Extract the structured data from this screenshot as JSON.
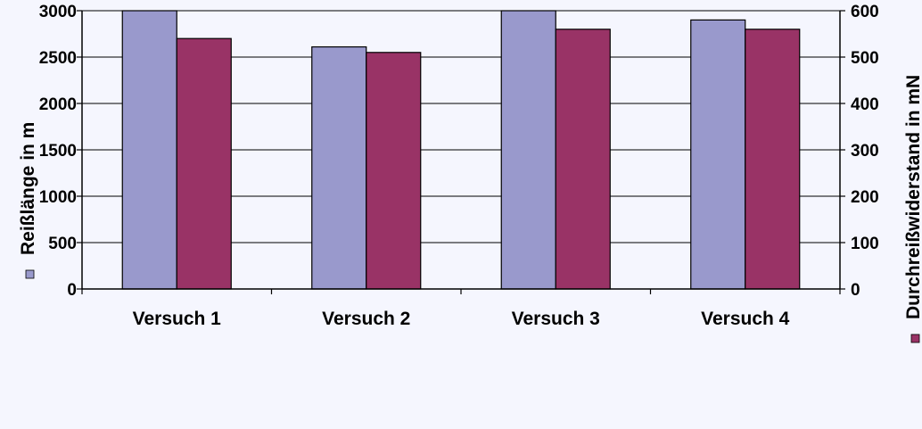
{
  "chart_data": {
    "type": "bar",
    "categories": [
      "Versuch 1",
      "Versuch 2",
      "Versuch 3",
      "Versuch 4"
    ],
    "series": [
      {
        "name": "",
        "axis": "left",
        "color": "#9999cc",
        "values": [
          3000,
          2610,
          3000,
          2900
        ]
      },
      {
        "name": "",
        "axis": "right",
        "color": "#993366",
        "values": [
          540,
          510,
          560,
          560
        ]
      }
    ],
    "y_left": {
      "label": "Reißlänge in m",
      "ylim": [
        0,
        3000
      ],
      "ticks": [
        0,
        500,
        1000,
        1500,
        2000,
        2500,
        3000
      ]
    },
    "y_right": {
      "label": "Durchreißwiderstand in mN",
      "ylim": [
        0,
        600
      ],
      "ticks": [
        0,
        100,
        200,
        300,
        400,
        500,
        600
      ]
    },
    "grid": true,
    "background": "#f5f6fe",
    "legend": "markers beside axis titles"
  }
}
